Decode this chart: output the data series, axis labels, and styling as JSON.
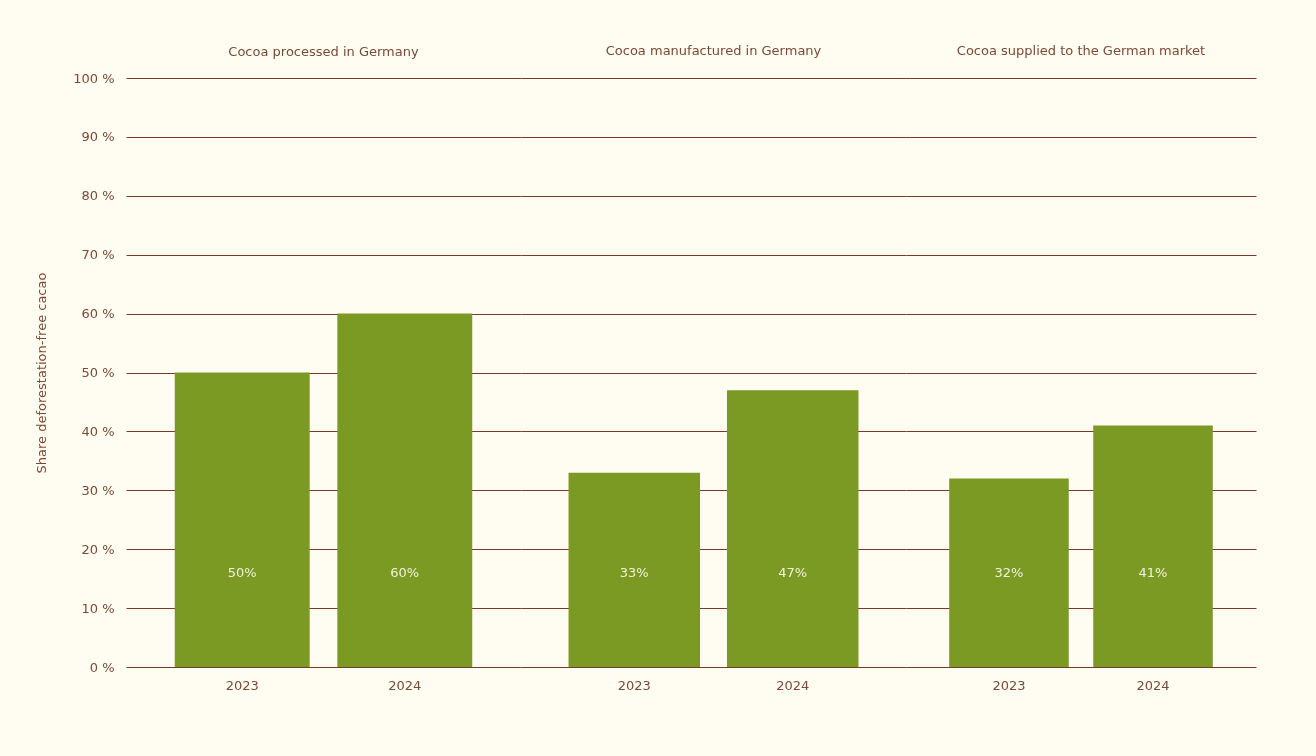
{
  "chart_data": [
    {
      "type": "bar",
      "title": "Cocoa processed in Germany",
      "ylabel": "Share deforestation-free cacao",
      "categories": [
        "2023",
        "2024"
      ],
      "values": [
        50,
        60
      ],
      "value_labels": [
        "50%",
        "60%"
      ],
      "color": "#7a9a23",
      "ylim": [
        0,
        100
      ],
      "yticks": [
        {
          "value": 0,
          "label": "0 %"
        },
        {
          "value": 10,
          "label": "10 %"
        },
        {
          "value": 20,
          "label": "20 %"
        },
        {
          "value": 30,
          "label": "30 %"
        },
        {
          "value": 40,
          "label": "40 %"
        },
        {
          "value": 50,
          "label": "50 %"
        },
        {
          "value": 60,
          "label": "60 %"
        },
        {
          "value": 70,
          "label": "70 %"
        },
        {
          "value": 80,
          "label": "80 %"
        },
        {
          "value": 90,
          "label": "90 %"
        },
        {
          "value": 100,
          "label": "100 %"
        }
      ],
      "grid": "y"
    },
    {
      "type": "bar",
      "title": "Cocoa manufactured in Germany",
      "categories": [
        "2023",
        "2024"
      ],
      "values": [
        33,
        47
      ],
      "value_labels": [
        "33%",
        "47%"
      ],
      "color": "#7a9a23",
      "ylim": [
        0,
        100
      ],
      "yticks": [
        {
          "value": 0,
          "label": null
        },
        {
          "value": 10,
          "label": null
        },
        {
          "value": 20,
          "label": null
        },
        {
          "value": 30,
          "label": null
        },
        {
          "value": 40,
          "label": null
        },
        {
          "value": 50,
          "label": null
        },
        {
          "value": 60,
          "label": null
        },
        {
          "value": 70,
          "label": null
        },
        {
          "value": 80,
          "label": null
        },
        {
          "value": 90,
          "label": null
        },
        {
          "value": 100,
          "label": null
        }
      ],
      "grid": "y",
      "tick_labels": "x"
    },
    {
      "type": "bar",
      "title": "Cocoa supplied to the German market",
      "categories": [
        "2023",
        "2024"
      ],
      "values": [
        32,
        41
      ],
      "value_labels": [
        "32%",
        "41%"
      ],
      "color": "#7a9a23",
      "ylim": [
        0,
        100
      ],
      "yticks": [
        {
          "value": 0,
          "label": null
        },
        {
          "value": 10,
          "label": null
        },
        {
          "value": 20,
          "label": null
        },
        {
          "value": 30,
          "label": null
        },
        {
          "value": 40,
          "label": null
        },
        {
          "value": 50,
          "label": null
        },
        {
          "value": 60,
          "label": null
        },
        {
          "value": 70,
          "label": null
        },
        {
          "value": 80,
          "label": null
        },
        {
          "value": 90,
          "label": null
        },
        {
          "value": 100,
          "label": null
        }
      ],
      "grid": "y",
      "tick_labels": "x"
    }
  ]
}
